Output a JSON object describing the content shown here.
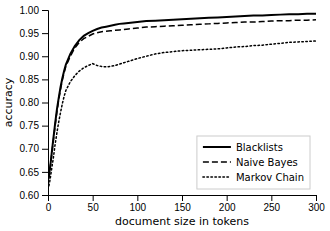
{
  "chart_data": {
    "type": "line",
    "xlabel": "document size in tokens",
    "ylabel": "accuracy",
    "x": [
      1,
      2,
      3,
      4,
      5,
      6,
      7,
      8,
      9,
      10,
      12,
      14,
      16,
      18,
      20,
      25,
      30,
      35,
      40,
      45,
      50,
      55,
      60,
      65,
      70,
      75,
      80,
      85,
      90,
      95,
      100,
      110,
      120,
      130,
      140,
      150,
      160,
      170,
      180,
      190,
      200,
      210,
      220,
      230,
      240,
      250,
      260,
      270,
      280,
      290,
      300
    ],
    "series": [
      {
        "name": "Blacklists",
        "color": "#000000",
        "line_style": "solid",
        "values": [
          0.638,
          0.655,
          0.67,
          0.688,
          0.705,
          0.722,
          0.738,
          0.755,
          0.77,
          0.785,
          0.81,
          0.833,
          0.852,
          0.868,
          0.882,
          0.905,
          0.922,
          0.935,
          0.944,
          0.95,
          0.955,
          0.959,
          0.962,
          0.964,
          0.966,
          0.968,
          0.97,
          0.971,
          0.972,
          0.973,
          0.974,
          0.976,
          0.977,
          0.978,
          0.979,
          0.98,
          0.981,
          0.982,
          0.983,
          0.984,
          0.985,
          0.986,
          0.987,
          0.988,
          0.988,
          0.989,
          0.99,
          0.991,
          0.991,
          0.992,
          0.992
        ]
      },
      {
        "name": "Naive Bayes",
        "color": "#000000",
        "line_style": "dashed",
        "values": [
          0.635,
          0.652,
          0.668,
          0.685,
          0.702,
          0.718,
          0.734,
          0.75,
          0.765,
          0.78,
          0.806,
          0.828,
          0.848,
          0.864,
          0.878,
          0.9,
          0.918,
          0.93,
          0.938,
          0.943,
          0.948,
          0.951,
          0.953,
          0.954,
          0.955,
          0.956,
          0.957,
          0.958,
          0.959,
          0.96,
          0.961,
          0.963,
          0.964,
          0.965,
          0.966,
          0.967,
          0.968,
          0.969,
          0.97,
          0.971,
          0.972,
          0.973,
          0.974,
          0.974,
          0.975,
          0.976,
          0.977,
          0.977,
          0.978,
          0.978,
          0.979
        ]
      },
      {
        "name": "Markov Chain",
        "color": "#000000",
        "line_style": "dotted",
        "values": [
          0.62,
          0.63,
          0.642,
          0.655,
          0.668,
          0.68,
          0.695,
          0.71,
          0.722,
          0.735,
          0.758,
          0.778,
          0.797,
          0.813,
          0.826,
          0.845,
          0.858,
          0.868,
          0.875,
          0.88,
          0.884,
          0.88,
          0.878,
          0.877,
          0.878,
          0.88,
          0.883,
          0.886,
          0.889,
          0.892,
          0.895,
          0.9,
          0.905,
          0.908,
          0.91,
          0.912,
          0.913,
          0.914,
          0.915,
          0.916,
          0.918,
          0.92,
          0.921,
          0.923,
          0.924,
          0.926,
          0.928,
          0.93,
          0.931,
          0.932,
          0.933
        ]
      }
    ],
    "xlim": [
      0,
      300
    ],
    "ylim": [
      0.6,
      1.0
    ],
    "xticks": [
      0,
      50,
      100,
      150,
      200,
      250,
      300
    ],
    "yticks": [
      {
        "value": 0.6,
        "label": "0.60"
      },
      0.65,
      {
        "value": 0.7,
        "label": "0.70"
      },
      0.75,
      {
        "value": 0.8,
        "label": "0.80"
      },
      0.85,
      {
        "value": 0.9,
        "label": "0.90"
      },
      0.95,
      {
        "value": 1.0,
        "label": "1.00"
      }
    ],
    "legend": "lower right"
  }
}
